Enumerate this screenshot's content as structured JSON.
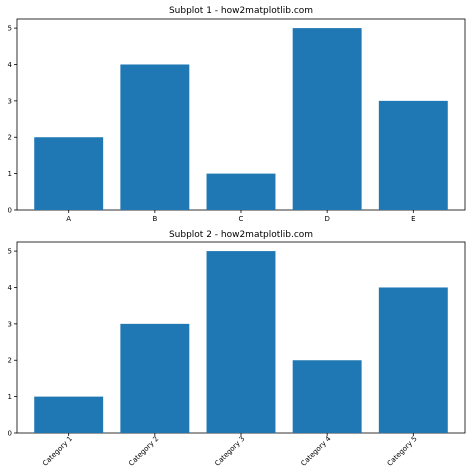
{
  "chart_data": [
    {
      "type": "bar",
      "title": "Subplot 1 - how2matplotlib.com",
      "categories": [
        "A",
        "B",
        "C",
        "D",
        "E"
      ],
      "values": [
        2,
        4,
        1,
        5,
        3
      ],
      "yticks": [
        "0",
        "1",
        "2",
        "3",
        "4",
        "5"
      ],
      "ylim": [
        0,
        5.25
      ],
      "xlabel": "",
      "ylabel": "",
      "xtick_rotation": 0,
      "bar_color": "#1f77b4",
      "grid": false
    },
    {
      "type": "bar",
      "title": "Subplot 2 - how2matplotlib.com",
      "categories": [
        "Category 1",
        "Category 2",
        "Category 3",
        "Category 4",
        "Category 5"
      ],
      "values": [
        1,
        3,
        5,
        2,
        4
      ],
      "yticks": [
        "0",
        "1",
        "2",
        "3",
        "4",
        "5"
      ],
      "ylim": [
        0,
        5.25
      ],
      "xlabel": "",
      "ylabel": "",
      "xtick_rotation": 45,
      "bar_color": "#1f77b4",
      "grid": false
    }
  ]
}
